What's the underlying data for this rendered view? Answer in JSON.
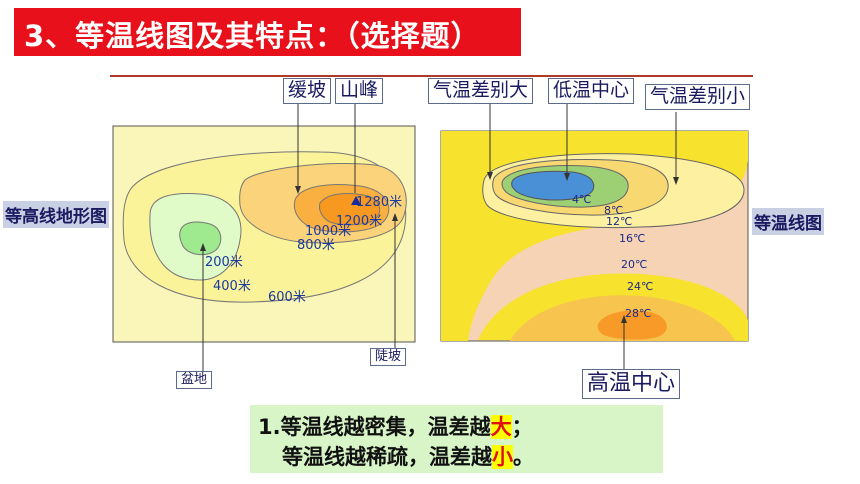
{
  "title": "3、等温线图及其特点：（选择题）",
  "left_map": {
    "side_label": "等高线地形图",
    "callouts": {
      "gentle_slope": "缓坡",
      "peak": "山峰",
      "basin": "盆地",
      "steep_slope": "陡坡"
    },
    "contours": [
      "200米",
      "400米",
      "600米",
      "800米",
      "1000米",
      "1200米",
      "1280米"
    ]
  },
  "right_map": {
    "side_label": "等温线图",
    "callouts": {
      "large_diff": "气温差别大",
      "low_center": "低温中心",
      "small_diff": "气温差别小",
      "high_center": "高温中心"
    },
    "isotherms": [
      "4℃",
      "8℃",
      "12℃",
      "16℃",
      "20℃",
      "24℃",
      "28℃"
    ]
  },
  "summary": {
    "line1_prefix": "1.等温线越密集，温差越",
    "line1_highlight": "大",
    "line1_suffix": "；",
    "line2_prefix": "等温线越稀疏，温差越",
    "line2_highlight": "小",
    "line2_suffix": "。"
  },
  "colors": {
    "title_bg": "#e8101a",
    "summary_bg": "#d8f5c8",
    "highlight_bg": "#ffff00",
    "highlight_text": "#e01010",
    "map_frame_bg": "#faf5b8",
    "isotherm_bg": "#f7d3b5"
  }
}
